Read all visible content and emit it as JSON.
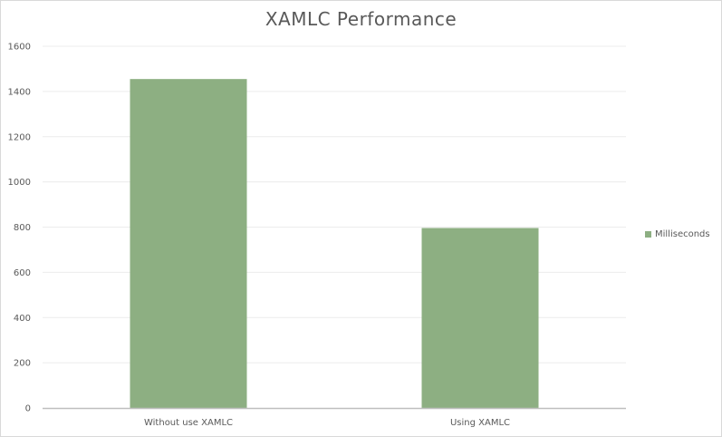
{
  "colors": {
    "bar": "#8daf82",
    "grid": "#ececec",
    "axis": "#bfbfbf",
    "text": "#595959"
  },
  "chart_data": {
    "type": "bar",
    "title": "XAMLC Performance",
    "xlabel": "",
    "ylabel": "",
    "categories": [
      "Without use XAMLC",
      "Using XAMLC"
    ],
    "series": [
      {
        "name": "Milliseconds",
        "values": [
          1455,
          796
        ]
      }
    ],
    "ylim": [
      0,
      1600
    ],
    "yticks": [
      "0",
      "200",
      "400",
      "600",
      "800",
      "1000",
      "1200",
      "1400",
      "1600"
    ],
    "grid": true,
    "legend": "right"
  }
}
